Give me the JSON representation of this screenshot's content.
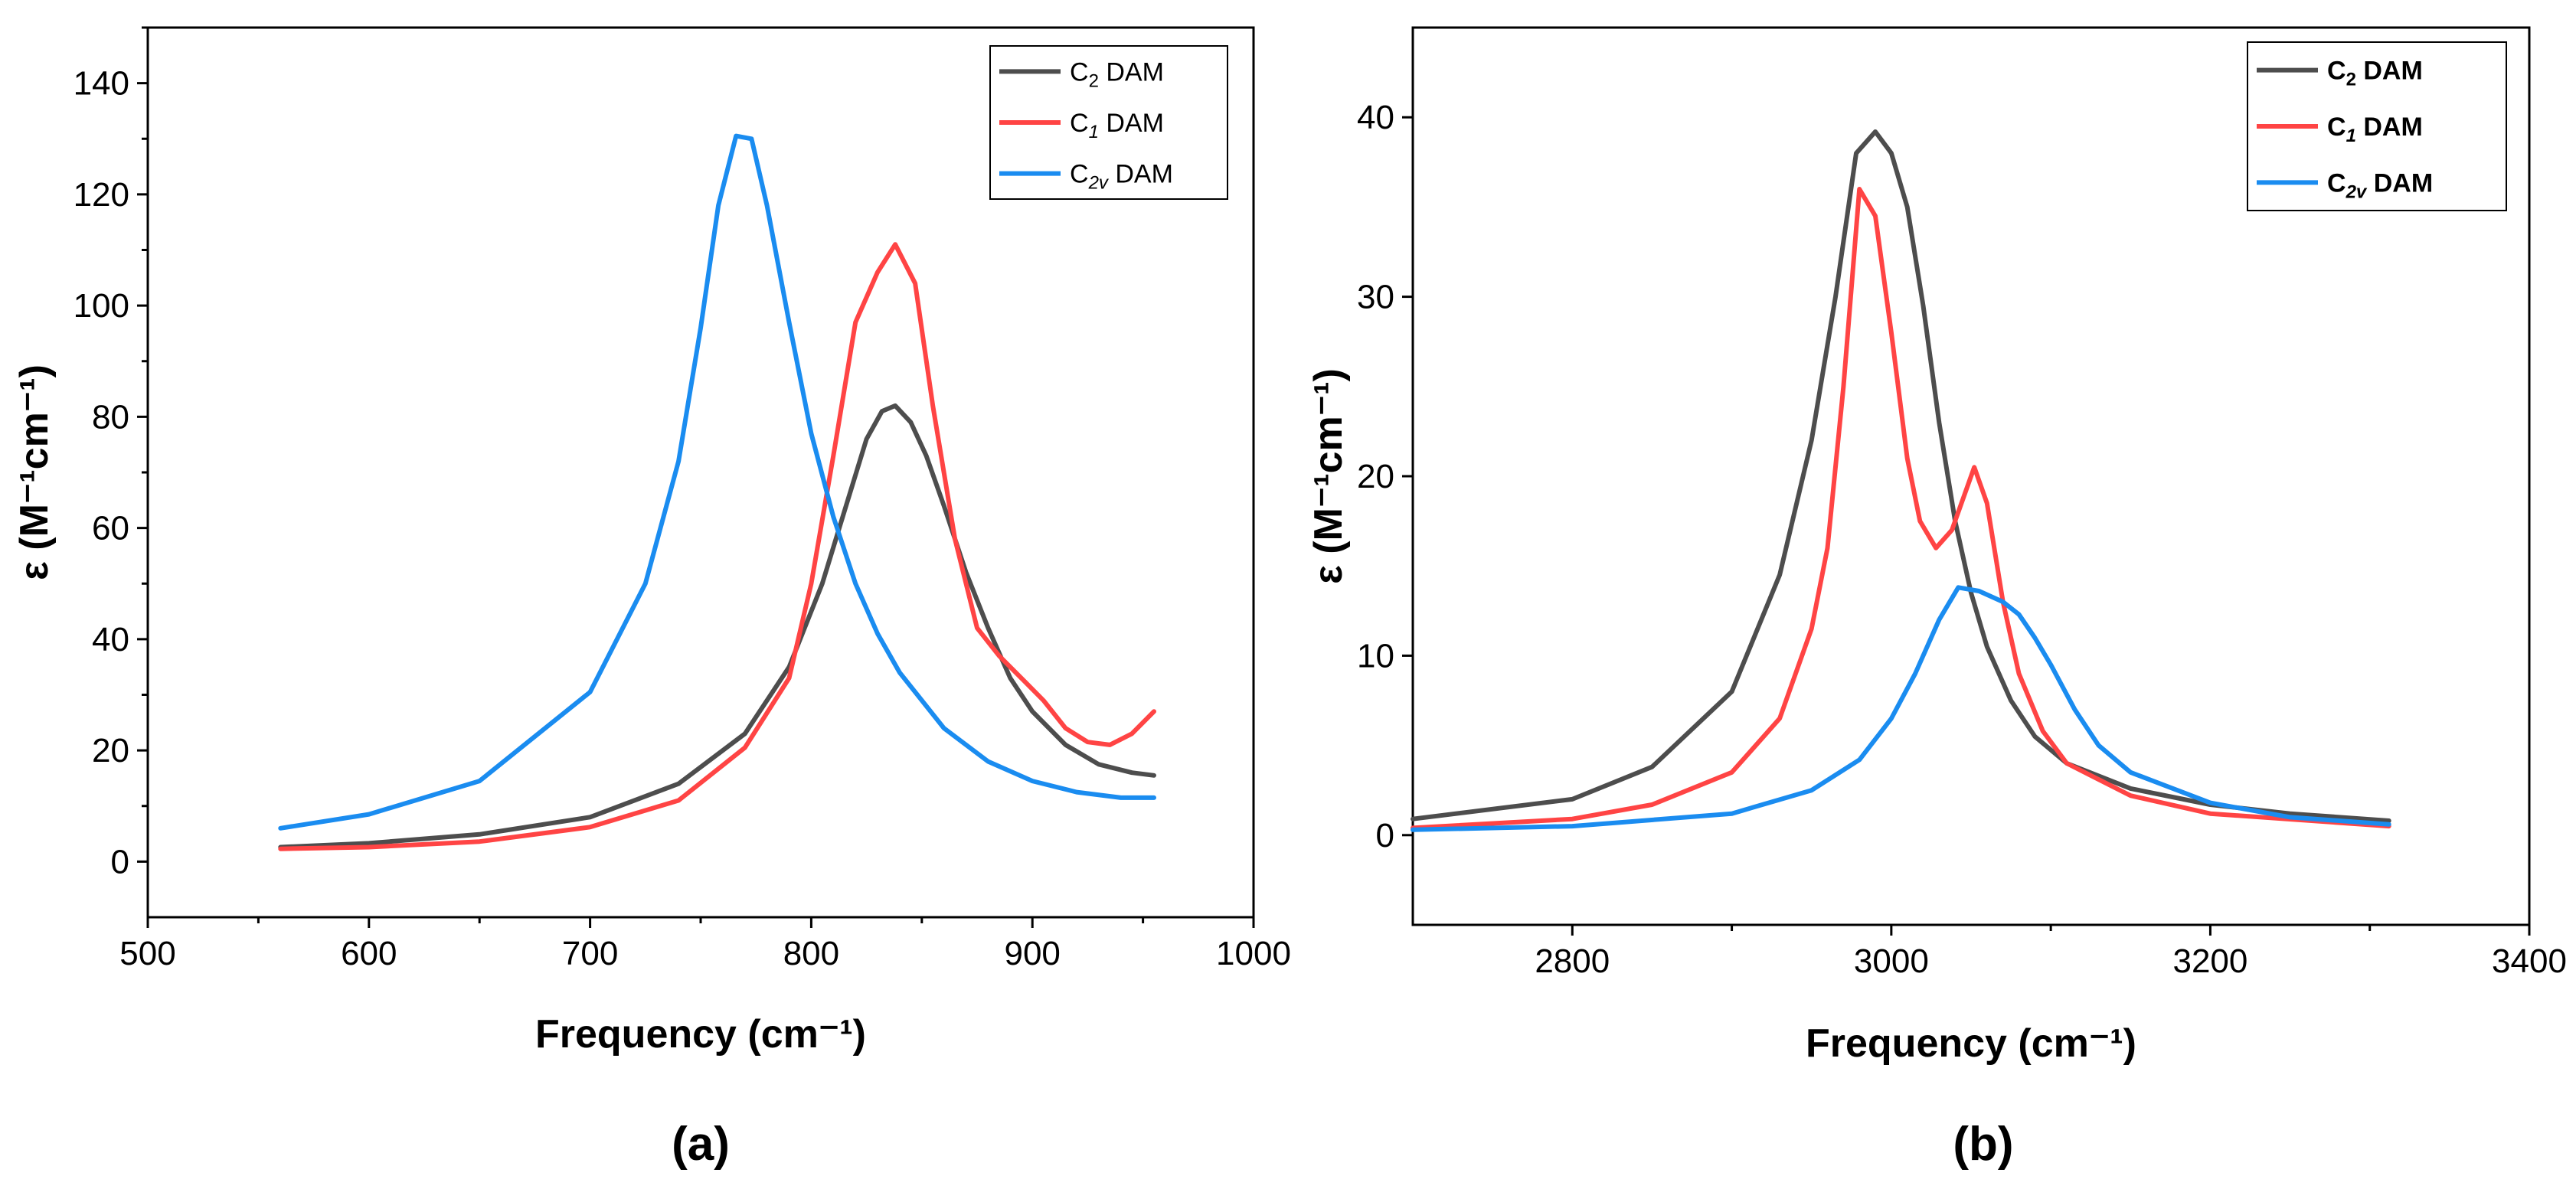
{
  "colors": {
    "C2": "#4d4d4d",
    "C1": "#ff4444",
    "C2v": "#1a8cf0"
  },
  "chart_data": [
    {
      "type": "line",
      "panel_label": "(a)",
      "xlabel": "Frequency (cm⁻¹)",
      "ylabel": "ε (M⁻¹cm⁻¹)",
      "xlim": [
        500,
        1000
      ],
      "ylim": [
        -10,
        150
      ],
      "xticks": [
        "500",
        "600",
        "700",
        "800",
        "900",
        "1000"
      ],
      "yticks": [
        "0",
        "20",
        "40",
        "60",
        "80",
        "100",
        "120",
        "140"
      ],
      "xtick_values": [
        500,
        600,
        700,
        800,
        900,
        1000
      ],
      "ytick_values": [
        0,
        20,
        40,
        60,
        80,
        100,
        120,
        140
      ],
      "grid": false,
      "legend_position": "top-right",
      "series": [
        {
          "name": "C2 DAM",
          "name_main": "C",
          "name_sub": "2",
          "name_rest": " DAM",
          "color": "#4d4d4d",
          "x": [
            560,
            600,
            650,
            700,
            740,
            770,
            790,
            805,
            815,
            825,
            832,
            838,
            845,
            852,
            860,
            870,
            880,
            890,
            900,
            915,
            930,
            945,
            955
          ],
          "y": [
            2.6,
            3.3,
            4.9,
            8.0,
            14.0,
            23.0,
            35.0,
            50.0,
            63.0,
            76.0,
            81.0,
            82.0,
            79.0,
            73.0,
            64.0,
            52.0,
            42.0,
            33.0,
            27.0,
            21.0,
            17.5,
            16.0,
            15.5
          ]
        },
        {
          "name": "C1 DAM",
          "name_main": "C",
          "name_sub": "1",
          "name_rest": " DAM",
          "color": "#ff4444",
          "x": [
            560,
            600,
            650,
            700,
            740,
            770,
            790,
            800,
            810,
            820,
            830,
            838,
            847,
            855,
            865,
            875,
            885,
            895,
            905,
            915,
            925,
            935,
            945,
            955
          ],
          "y": [
            2.3,
            2.6,
            3.6,
            6.2,
            11.0,
            20.5,
            33.0,
            50.0,
            73.0,
            97.0,
            106.0,
            111.0,
            104.0,
            82.0,
            58.0,
            42.0,
            37.0,
            33.0,
            29.0,
            24.0,
            21.5,
            21.0,
            23.0,
            27.0
          ]
        },
        {
          "name": "C2v DAM",
          "name_main": "C",
          "name_sub": "2v",
          "name_rest": " DAM",
          "color": "#1a8cf0",
          "x": [
            560,
            600,
            650,
            700,
            725,
            740,
            750,
            758,
            766,
            773,
            780,
            790,
            800,
            810,
            820,
            830,
            840,
            860,
            880,
            900,
            920,
            940,
            955
          ],
          "y": [
            6.0,
            8.5,
            14.5,
            30.5,
            50.0,
            72.0,
            96.0,
            118.0,
            130.5,
            130.0,
            118.0,
            97.0,
            77.0,
            62.0,
            50.0,
            41.0,
            34.0,
            24.0,
            18.0,
            14.5,
            12.5,
            11.5,
            11.5
          ]
        }
      ]
    },
    {
      "type": "line",
      "panel_label": "(b)",
      "xlabel": "Frequency (cm⁻¹)",
      "ylabel": "ε (M⁻¹cm⁻¹)",
      "xlim": [
        2700,
        3400
      ],
      "ylim": [
        -5,
        45
      ],
      "xticks": [
        "2800",
        "3000",
        "3200",
        "3400"
      ],
      "yticks": [
        "0",
        "10",
        "20",
        "30",
        "40"
      ],
      "xtick_values": [
        2800,
        3000,
        3200,
        3400
      ],
      "ytick_values": [
        0,
        10,
        20,
        30,
        40
      ],
      "grid": false,
      "legend_position": "top-right",
      "series": [
        {
          "name": "C2 DAM",
          "name_main": "C",
          "name_sub": "2",
          "name_rest": " DAM",
          "color": "#4d4d4d",
          "x": [
            2700,
            2800,
            2850,
            2900,
            2930,
            2950,
            2965,
            2978,
            2990,
            3000,
            3010,
            3020,
            3030,
            3040,
            3050,
            3060,
            3075,
            3090,
            3110,
            3150,
            3200,
            3250,
            3312
          ],
          "y": [
            0.9,
            2.0,
            3.8,
            8.0,
            14.5,
            22.0,
            30.0,
            38.0,
            39.2,
            38.0,
            35.0,
            29.5,
            23.0,
            17.5,
            13.5,
            10.5,
            7.5,
            5.5,
            4.0,
            2.6,
            1.7,
            1.2,
            0.8
          ]
        },
        {
          "name": "C1 DAM",
          "name_main": "C",
          "name_sub": "1",
          "name_rest": " DAM",
          "color": "#ff4444",
          "x": [
            2700,
            2800,
            2850,
            2900,
            2930,
            2950,
            2960,
            2970,
            2980,
            2990,
            3000,
            3010,
            3018,
            3028,
            3038,
            3046,
            3052,
            3060,
            3070,
            3080,
            3095,
            3110,
            3150,
            3200,
            3312
          ],
          "y": [
            0.4,
            0.9,
            1.7,
            3.5,
            6.5,
            11.5,
            16.0,
            25.0,
            36.0,
            34.5,
            28.0,
            21.0,
            17.5,
            16.0,
            17.0,
            19.0,
            20.5,
            18.5,
            13.0,
            9.0,
            5.8,
            4.0,
            2.2,
            1.2,
            0.5
          ]
        },
        {
          "name": "C2v DAM",
          "name_main": "C",
          "name_sub": "2v",
          "name_rest": " DAM",
          "color": "#1a8cf0",
          "x": [
            2700,
            2800,
            2900,
            2950,
            2980,
            3000,
            3015,
            3030,
            3042,
            3055,
            3070,
            3080,
            3090,
            3100,
            3115,
            3130,
            3150,
            3200,
            3250,
            3312
          ],
          "y": [
            0.3,
            0.5,
            1.2,
            2.5,
            4.2,
            6.5,
            9.0,
            12.0,
            13.8,
            13.6,
            13.0,
            12.3,
            11.0,
            9.5,
            7.0,
            5.0,
            3.5,
            1.8,
            1.0,
            0.6
          ]
        }
      ]
    }
  ]
}
